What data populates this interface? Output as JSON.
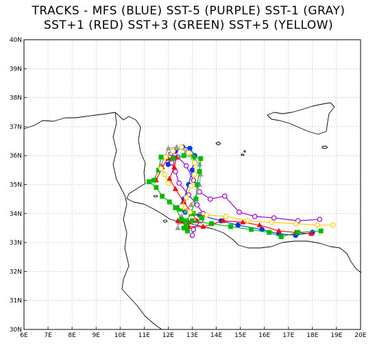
{
  "title": {
    "line1": "TRACKS - MFS (BLUE) SST-5 (PURPLE)  SST-1 (GRAY)",
    "line2": "SST+1 (RED)  SST+3 (GREEN)  SST+5 (YELLOW)"
  },
  "chart_data": {
    "type": "map",
    "xlim": [
      6,
      20
    ],
    "ylim": [
      30,
      40
    ],
    "x_ticks": [
      "6E",
      "7E",
      "8E",
      "9E",
      "10E",
      "11E",
      "12E",
      "13E",
      "14E",
      "15E",
      "16E",
      "17E",
      "18E",
      "19E",
      "20E"
    ],
    "y_ticks": [
      "30N",
      "31N",
      "32N",
      "33N",
      "34N",
      "35N",
      "36N",
      "37N",
      "38N",
      "39N",
      "40N"
    ],
    "series": [
      {
        "color": "#0033ff",
        "marker": "circle",
        "points": [
          [
            12.0,
            35.7
          ],
          [
            12.1,
            35.95
          ],
          [
            12.3,
            36.15
          ],
          [
            12.6,
            36.3
          ],
          [
            12.9,
            36.25
          ],
          [
            13.1,
            36.0
          ],
          [
            13.0,
            35.5
          ],
          [
            12.85,
            35.0
          ],
          [
            12.65,
            34.5
          ],
          [
            12.4,
            34.2
          ],
          [
            12.7,
            34.05
          ],
          [
            13.3,
            33.95
          ],
          [
            14.2,
            33.75
          ],
          [
            14.9,
            33.6
          ],
          [
            15.9,
            33.45
          ],
          [
            16.6,
            33.3
          ],
          [
            17.3,
            33.25
          ],
          [
            18.0,
            33.35
          ]
        ]
      },
      {
        "color": "#9900cc",
        "marker": "circle",
        "points": [
          [
            12.1,
            36.05
          ],
          [
            12.4,
            35.95
          ],
          [
            12.75,
            35.65
          ],
          [
            13.05,
            35.15
          ],
          [
            13.3,
            34.75
          ],
          [
            13.75,
            34.5
          ],
          [
            14.35,
            34.6
          ],
          [
            14.95,
            34.05
          ],
          [
            15.6,
            33.9
          ],
          [
            16.4,
            33.85
          ],
          [
            17.4,
            33.75
          ],
          [
            18.3,
            33.8
          ]
        ]
      },
      {
        "color": "#9900cc",
        "marker": "circle",
        "points": [
          [
            12.05,
            35.95
          ],
          [
            12.15,
            35.75
          ],
          [
            12.3,
            35.45
          ],
          [
            12.45,
            35.05
          ],
          [
            12.85,
            34.65
          ],
          [
            13.2,
            34.3
          ],
          [
            13.45,
            34.0
          ],
          [
            13.35,
            33.75
          ],
          [
            13.05,
            33.45
          ],
          [
            13.0,
            33.25
          ]
        ]
      },
      {
        "color": "#999999",
        "marker": "triangle",
        "points": [
          [
            11.7,
            35.65
          ],
          [
            11.85,
            35.95
          ],
          [
            12.0,
            36.25
          ],
          [
            12.35,
            36.3
          ],
          [
            12.75,
            36.15
          ],
          [
            13.05,
            35.95
          ],
          [
            13.3,
            35.7
          ],
          [
            13.35,
            35.35
          ],
          [
            13.3,
            35.0
          ],
          [
            13.15,
            34.55
          ],
          [
            12.95,
            34.3
          ],
          [
            12.75,
            34.1
          ],
          [
            12.55,
            33.9
          ],
          [
            12.45,
            33.7
          ],
          [
            12.4,
            33.5
          ]
        ]
      },
      {
        "color": "#ff0000",
        "marker": "triangle",
        "points": [
          [
            11.5,
            35.15
          ],
          [
            11.75,
            35.6
          ],
          [
            12.0,
            35.9
          ],
          [
            12.35,
            35.95
          ],
          [
            12.25,
            35.6
          ],
          [
            12.05,
            35.2
          ],
          [
            12.3,
            34.85
          ],
          [
            12.65,
            34.4
          ],
          [
            12.95,
            34.05
          ],
          [
            13.2,
            33.75
          ],
          [
            12.85,
            33.7
          ],
          [
            12.4,
            33.75
          ],
          [
            12.85,
            33.55
          ],
          [
            13.45,
            33.55
          ],
          [
            14.3,
            33.75
          ],
          [
            15.1,
            33.7
          ],
          [
            15.8,
            33.6
          ],
          [
            16.6,
            33.4
          ],
          [
            17.3,
            33.35
          ],
          [
            17.95,
            33.3
          ]
        ]
      },
      {
        "color": "#00bb00",
        "marker": "square",
        "points": [
          [
            11.4,
            35.15
          ],
          [
            11.6,
            35.5
          ],
          [
            11.7,
            35.95
          ],
          [
            12.2,
            35.9
          ],
          [
            12.65,
            36.0
          ],
          [
            13.05,
            35.95
          ],
          [
            13.35,
            35.9
          ],
          [
            13.3,
            35.45
          ],
          [
            13.2,
            35.0
          ],
          [
            13.15,
            34.5
          ],
          [
            12.95,
            34.0
          ],
          [
            12.75,
            33.75
          ],
          [
            12.65,
            33.5
          ],
          [
            13.0,
            33.75
          ],
          [
            13.8,
            33.65
          ],
          [
            14.6,
            33.55
          ],
          [
            15.45,
            33.45
          ],
          [
            16.2,
            33.35
          ],
          [
            16.7,
            33.2
          ],
          [
            17.4,
            33.35
          ],
          [
            18.35,
            33.4
          ]
        ]
      },
      {
        "color": "#00bb00",
        "marker": "square",
        "points": [
          [
            11.2,
            35.1
          ],
          [
            11.5,
            34.9
          ],
          [
            11.75,
            34.6
          ],
          [
            12.05,
            34.4
          ],
          [
            12.5,
            34.15
          ],
          [
            13.05,
            34.0
          ],
          [
            13.4,
            33.85
          ]
        ]
      },
      {
        "color": "#00bb00",
        "marker": "square",
        "points": [
          [
            12.3,
            34.2
          ],
          [
            12.55,
            33.8
          ],
          [
            12.75,
            33.55
          ],
          [
            12.8,
            33.4
          ]
        ]
      },
      {
        "color": "#ffcc00",
        "marker": "circle",
        "points": [
          [
            11.9,
            35.95
          ],
          [
            12.2,
            36.15
          ],
          [
            12.55,
            36.3
          ],
          [
            12.85,
            36.1
          ],
          [
            13.1,
            35.75
          ],
          [
            13.1,
            35.35
          ],
          [
            12.95,
            34.95
          ],
          [
            12.75,
            34.55
          ],
          [
            12.55,
            34.25
          ],
          [
            12.9,
            34.05
          ],
          [
            13.6,
            33.95
          ],
          [
            14.4,
            33.9
          ],
          [
            15.3,
            33.75
          ],
          [
            16.3,
            33.7
          ],
          [
            17.3,
            33.65
          ],
          [
            18.2,
            33.6
          ],
          [
            18.85,
            33.6
          ]
        ]
      },
      {
        "color": "#ffcc00",
        "marker": "circle",
        "points": [
          [
            11.7,
            35.55
          ],
          [
            11.85,
            35.35
          ],
          [
            12.0,
            35.05
          ]
        ]
      }
    ]
  }
}
